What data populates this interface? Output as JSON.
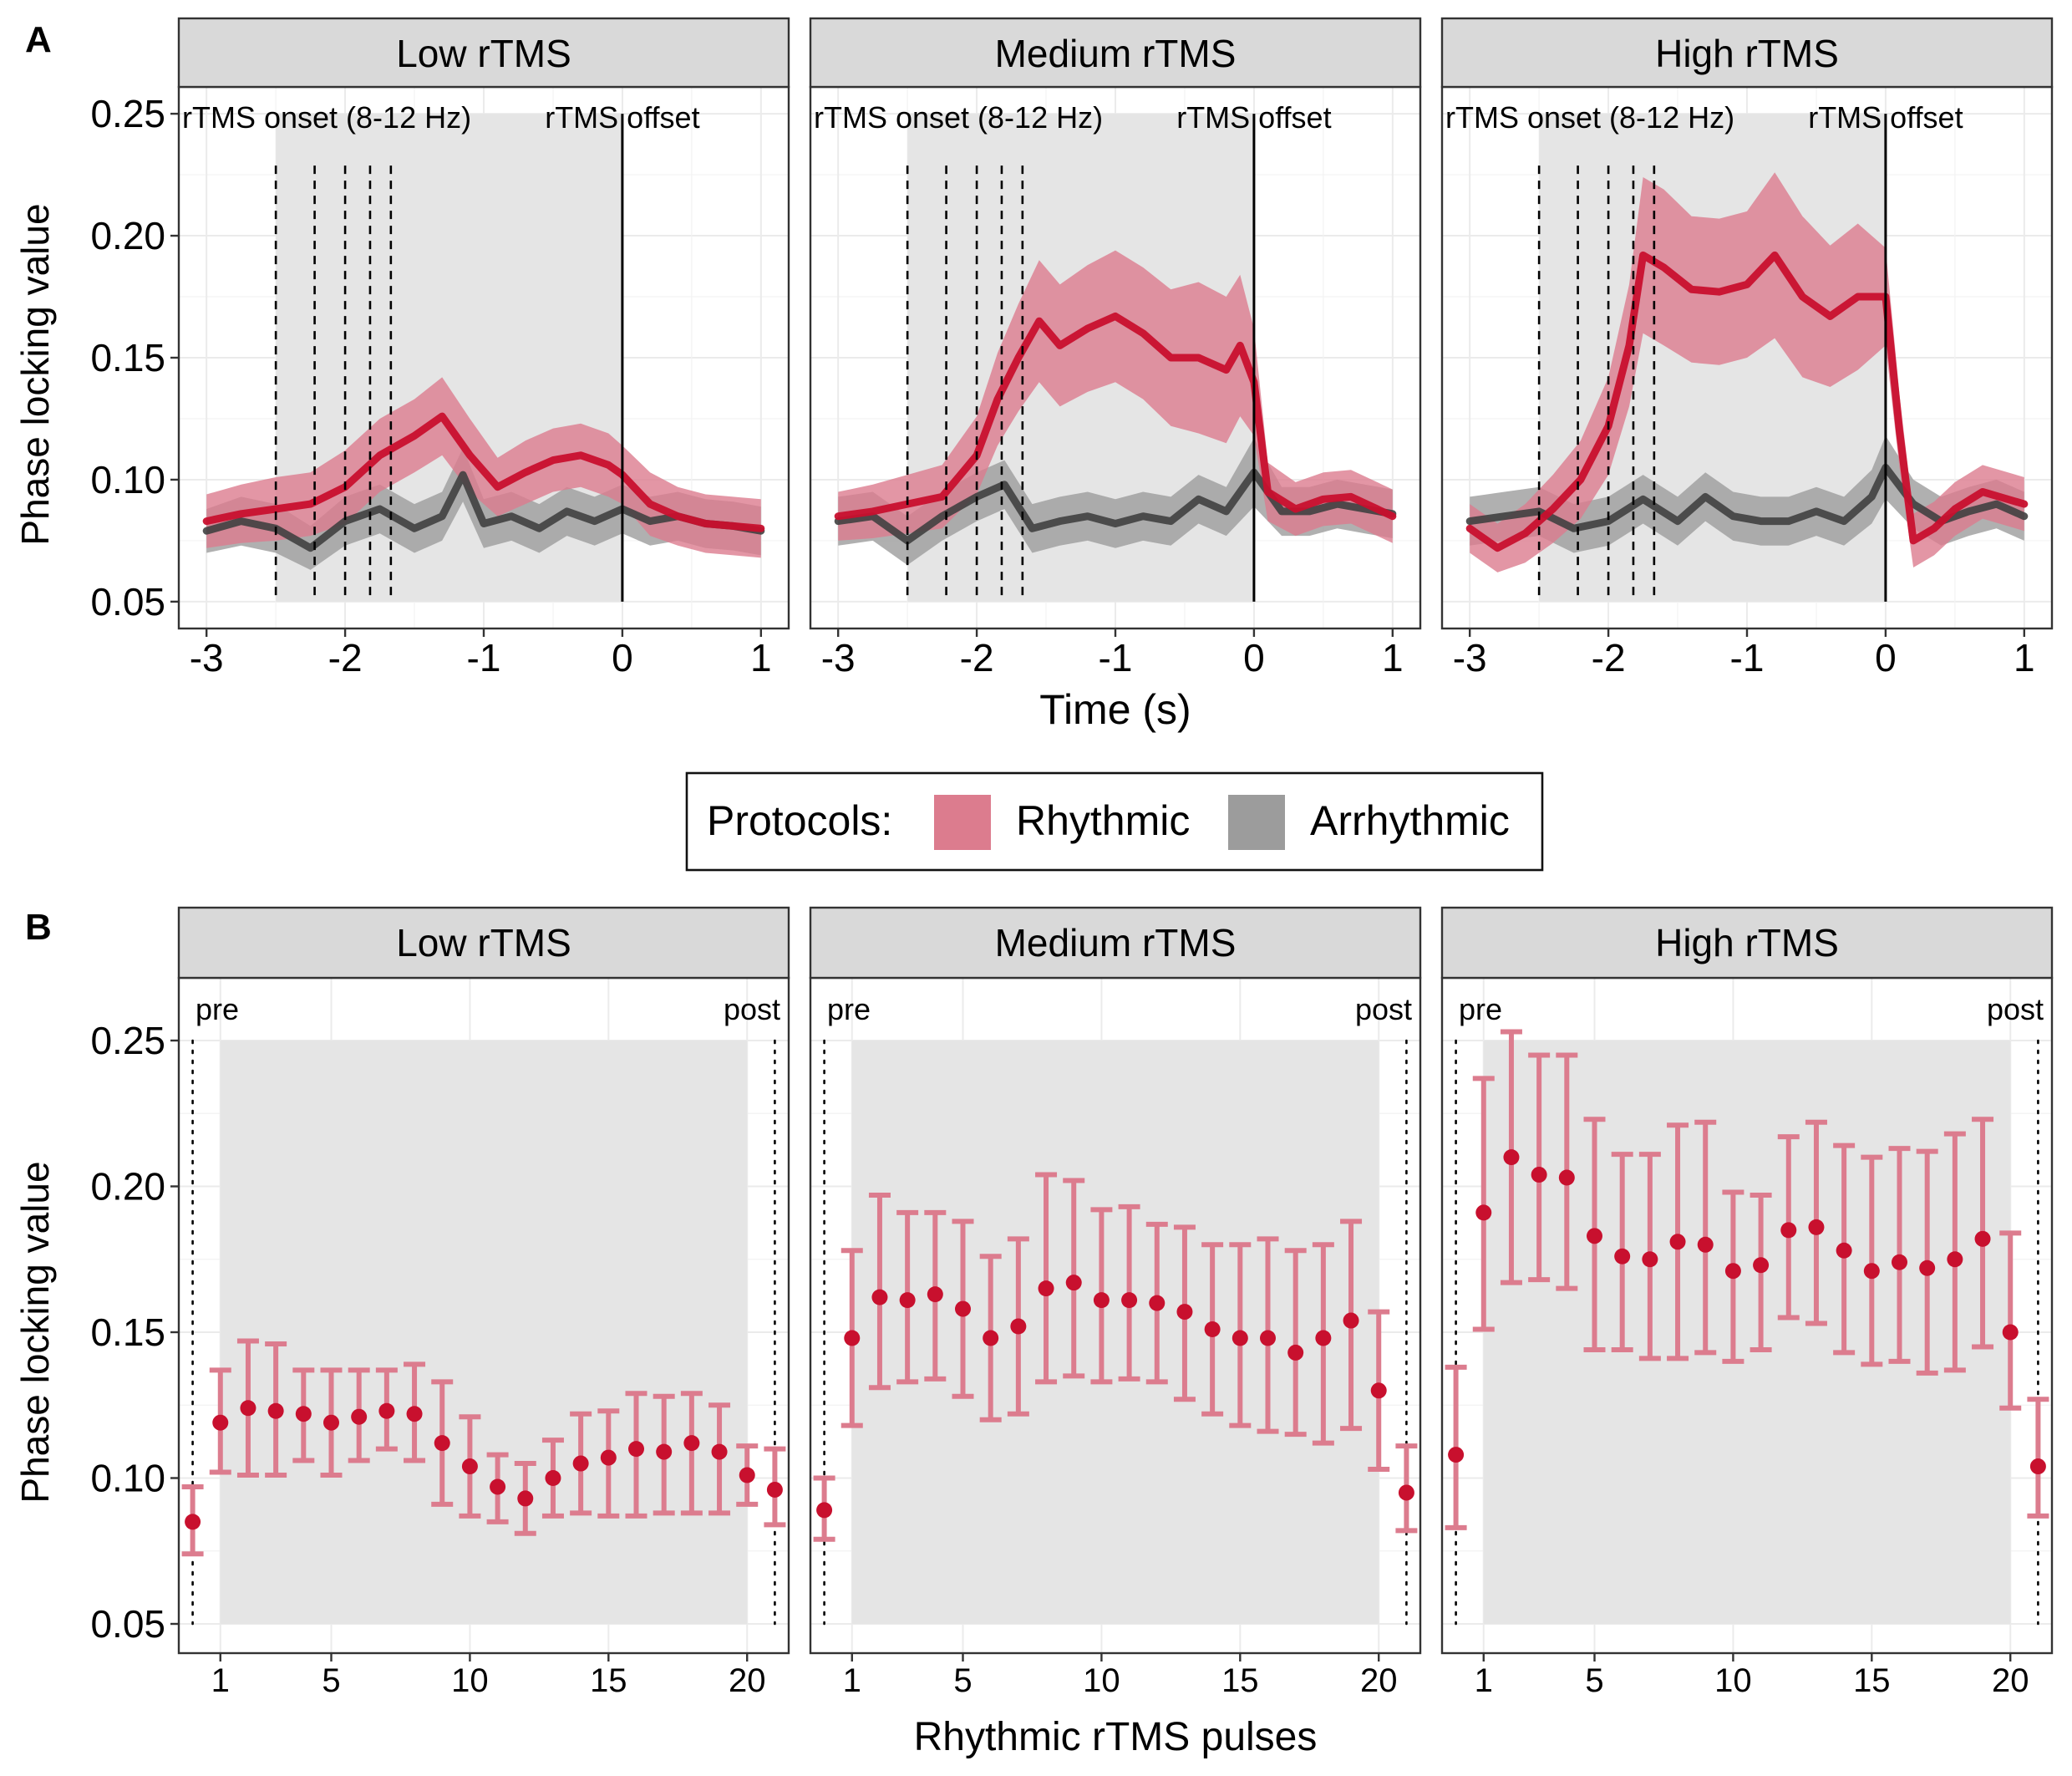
{
  "figure": {
    "panel_a_letter": "A",
    "panel_b_letter": "B",
    "colors": {
      "rhythmic": "#C8102E",
      "rhythmic_fill": "#DC7C8E",
      "arrhythmic": "#404040",
      "arrhythmic_fill": "#9C9C9C",
      "strip": "#D9D9D9",
      "shade": "#E5E5E5",
      "grid": "#EBEBEB"
    }
  },
  "legend": {
    "title": "Protocols:",
    "items": [
      {
        "label": "Rhythmic",
        "color": "#DC7C8E"
      },
      {
        "label": "Arrhythmic",
        "color": "#9C9C9C"
      }
    ]
  },
  "chart_data": [
    {
      "panel": "A",
      "type": "line",
      "ylabel": "Phase locking value",
      "xlabel": "Time (s)",
      "xlim": [
        -3,
        1
      ],
      "ylim": [
        0.05,
        0.25
      ],
      "xticks": [
        -3,
        -2,
        -1,
        0,
        1
      ],
      "xtick_labels": [
        "-3",
        "-2",
        "-1",
        "0",
        "1"
      ],
      "yticks": [
        0.05,
        0.1,
        0.15,
        0.2,
        0.25
      ],
      "ytick_labels": [
        "0.05",
        "0.10",
        "0.15",
        "0.20",
        "0.25"
      ],
      "annotations": {
        "onset": "rTMS onset (8-12 Hz)",
        "offset": "rTMS offset"
      },
      "shaded_x_range": [
        -2.5,
        0
      ],
      "onset_lines_x": [
        -2.5,
        -2.22,
        -2.0,
        -1.82,
        -1.67
      ],
      "offset_line_x": 0,
      "facets": [
        {
          "title": "Low rTMS",
          "series": [
            {
              "name": "Rhythmic",
              "x": [
                -3.0,
                -2.75,
                -2.5,
                -2.25,
                -2.0,
                -1.75,
                -1.5,
                -1.3,
                -1.1,
                -0.9,
                -0.7,
                -0.5,
                -0.3,
                -0.1,
                0.0,
                0.2,
                0.4,
                0.6,
                0.8,
                1.0
              ],
              "y": [
                0.083,
                0.086,
                0.088,
                0.09,
                0.097,
                0.11,
                0.118,
                0.126,
                0.11,
                0.097,
                0.103,
                0.108,
                0.11,
                0.106,
                0.102,
                0.09,
                0.085,
                0.082,
                0.081,
                0.08
              ],
              "lower": [
                0.072,
                0.074,
                0.075,
                0.077,
                0.082,
                0.095,
                0.103,
                0.11,
                0.095,
                0.085,
                0.09,
                0.095,
                0.097,
                0.093,
                0.09,
                0.077,
                0.073,
                0.07,
                0.069,
                0.068
              ],
              "upper": [
                0.094,
                0.098,
                0.101,
                0.103,
                0.112,
                0.125,
                0.133,
                0.142,
                0.125,
                0.109,
                0.116,
                0.121,
                0.123,
                0.119,
                0.114,
                0.103,
                0.097,
                0.094,
                0.093,
                0.092
              ]
            },
            {
              "name": "Arrhythmic",
              "x": [
                -3.0,
                -2.75,
                -2.5,
                -2.25,
                -2.0,
                -1.75,
                -1.5,
                -1.3,
                -1.15,
                -1.0,
                -0.8,
                -0.6,
                -0.4,
                -0.2,
                0.0,
                0.2,
                0.4,
                0.6,
                0.8,
                1.0
              ],
              "y": [
                0.079,
                0.083,
                0.08,
                0.072,
                0.083,
                0.088,
                0.08,
                0.085,
                0.102,
                0.082,
                0.085,
                0.08,
                0.087,
                0.083,
                0.088,
                0.083,
                0.085,
                0.082,
                0.081,
                0.079
              ],
              "lower": [
                0.07,
                0.073,
                0.07,
                0.063,
                0.073,
                0.078,
                0.07,
                0.075,
                0.091,
                0.072,
                0.075,
                0.07,
                0.077,
                0.073,
                0.078,
                0.073,
                0.075,
                0.072,
                0.071,
                0.069
              ],
              "upper": [
                0.088,
                0.093,
                0.09,
                0.081,
                0.093,
                0.098,
                0.09,
                0.095,
                0.113,
                0.092,
                0.095,
                0.09,
                0.097,
                0.093,
                0.098,
                0.093,
                0.095,
                0.092,
                0.091,
                0.089
              ]
            }
          ]
        },
        {
          "title": "Medium rTMS",
          "series": [
            {
              "name": "Rhythmic",
              "x": [
                -3.0,
                -2.75,
                -2.5,
                -2.25,
                -2.0,
                -1.85,
                -1.7,
                -1.55,
                -1.4,
                -1.2,
                -1.0,
                -0.8,
                -0.6,
                -0.4,
                -0.2,
                -0.1,
                0.0,
                0.1,
                0.3,
                0.5,
                0.7,
                1.0
              ],
              "y": [
                0.085,
                0.087,
                0.09,
                0.093,
                0.11,
                0.133,
                0.15,
                0.165,
                0.155,
                0.162,
                0.167,
                0.16,
                0.15,
                0.15,
                0.145,
                0.155,
                0.14,
                0.095,
                0.088,
                0.092,
                0.093,
                0.085
              ],
              "lower": [
                0.075,
                0.076,
                0.078,
                0.08,
                0.094,
                0.114,
                0.128,
                0.14,
                0.13,
                0.136,
                0.14,
                0.133,
                0.122,
                0.119,
                0.115,
                0.126,
                0.118,
                0.083,
                0.077,
                0.081,
                0.082,
                0.074
              ],
              "upper": [
                0.095,
                0.098,
                0.102,
                0.106,
                0.126,
                0.152,
                0.172,
                0.19,
                0.18,
                0.188,
                0.194,
                0.187,
                0.178,
                0.181,
                0.175,
                0.184,
                0.162,
                0.107,
                0.099,
                0.103,
                0.104,
                0.096
              ]
            },
            {
              "name": "Arrhythmic",
              "x": [
                -3.0,
                -2.75,
                -2.5,
                -2.25,
                -2.0,
                -1.8,
                -1.6,
                -1.4,
                -1.2,
                -1.0,
                -0.8,
                -0.6,
                -0.4,
                -0.2,
                0.0,
                0.2,
                0.4,
                0.6,
                0.8,
                1.0
              ],
              "y": [
                0.083,
                0.085,
                0.075,
                0.085,
                0.093,
                0.098,
                0.08,
                0.083,
                0.085,
                0.082,
                0.085,
                0.083,
                0.092,
                0.087,
                0.103,
                0.087,
                0.087,
                0.09,
                0.088,
                0.086
              ],
              "lower": [
                0.073,
                0.075,
                0.065,
                0.075,
                0.083,
                0.088,
                0.07,
                0.073,
                0.075,
                0.072,
                0.075,
                0.073,
                0.082,
                0.077,
                0.089,
                0.077,
                0.077,
                0.08,
                0.078,
                0.076
              ],
              "upper": [
                0.093,
                0.095,
                0.085,
                0.095,
                0.103,
                0.108,
                0.09,
                0.093,
                0.095,
                0.092,
                0.095,
                0.093,
                0.102,
                0.097,
                0.117,
                0.097,
                0.097,
                0.1,
                0.098,
                0.096
              ]
            }
          ]
        },
        {
          "title": "High rTMS",
          "series": [
            {
              "name": "Rhythmic",
              "x": [
                -3.0,
                -2.8,
                -2.6,
                -2.4,
                -2.2,
                -2.0,
                -1.85,
                -1.75,
                -1.6,
                -1.4,
                -1.2,
                -1.0,
                -0.8,
                -0.6,
                -0.4,
                -0.2,
                0.0,
                0.1,
                0.2,
                0.35,
                0.5,
                0.7,
                1.0
              ],
              "y": [
                0.08,
                0.072,
                0.078,
                0.088,
                0.1,
                0.122,
                0.155,
                0.192,
                0.187,
                0.178,
                0.177,
                0.18,
                0.192,
                0.175,
                0.167,
                0.175,
                0.175,
                0.12,
                0.075,
                0.08,
                0.088,
                0.095,
                0.09
              ],
              "lower": [
                0.07,
                0.062,
                0.066,
                0.074,
                0.084,
                0.102,
                0.13,
                0.16,
                0.155,
                0.148,
                0.147,
                0.15,
                0.158,
                0.142,
                0.138,
                0.145,
                0.155,
                0.105,
                0.064,
                0.069,
                0.077,
                0.084,
                0.079
              ],
              "upper": [
                0.09,
                0.082,
                0.09,
                0.102,
                0.116,
                0.142,
                0.18,
                0.224,
                0.219,
                0.208,
                0.207,
                0.21,
                0.226,
                0.208,
                0.196,
                0.205,
                0.195,
                0.135,
                0.086,
                0.091,
                0.099,
                0.106,
                0.101
              ]
            },
            {
              "name": "Arrhythmic",
              "x": [
                -3.0,
                -2.75,
                -2.5,
                -2.25,
                -2.0,
                -1.75,
                -1.5,
                -1.3,
                -1.1,
                -0.9,
                -0.7,
                -0.5,
                -0.3,
                -0.1,
                0.0,
                0.2,
                0.4,
                0.6,
                0.8,
                1.0
              ],
              "y": [
                0.083,
                0.085,
                0.087,
                0.08,
                0.083,
                0.092,
                0.083,
                0.093,
                0.085,
                0.083,
                0.083,
                0.087,
                0.083,
                0.093,
                0.105,
                0.09,
                0.083,
                0.087,
                0.09,
                0.085
              ],
              "lower": [
                0.073,
                0.075,
                0.077,
                0.07,
                0.073,
                0.082,
                0.073,
                0.083,
                0.075,
                0.073,
                0.073,
                0.077,
                0.073,
                0.082,
                0.092,
                0.08,
                0.073,
                0.077,
                0.08,
                0.075
              ],
              "upper": [
                0.093,
                0.095,
                0.097,
                0.09,
                0.093,
                0.102,
                0.093,
                0.103,
                0.095,
                0.093,
                0.093,
                0.097,
                0.093,
                0.104,
                0.118,
                0.1,
                0.093,
                0.097,
                0.1,
                0.095
              ]
            }
          ]
        }
      ]
    },
    {
      "panel": "B",
      "type": "scatter",
      "ylabel": "Phase locking value",
      "xlabel": "Rhythmic rTMS pulses",
      "xlim": [
        -0.5,
        21.5
      ],
      "ylim": [
        0.05,
        0.25
      ],
      "xticks": [
        1,
        5,
        10,
        15,
        20
      ],
      "xtick_labels": [
        "1",
        "5",
        "10",
        "15",
        "20"
      ],
      "yticks": [
        0.05,
        0.1,
        0.15,
        0.2,
        0.25
      ],
      "ytick_labels": [
        "0.05",
        "0.10",
        "0.15",
        "0.20",
        "0.25"
      ],
      "annotations": {
        "pre": "pre",
        "post": "post"
      },
      "shaded_x_range": [
        1,
        20
      ],
      "pre_x": 0,
      "post_x": 21,
      "x": [
        0,
        1,
        2,
        3,
        4,
        5,
        6,
        7,
        8,
        9,
        10,
        11,
        12,
        13,
        14,
        15,
        16,
        17,
        18,
        19,
        20,
        21
      ],
      "facets": [
        {
          "title": "Low rTMS",
          "y": [
            0.085,
            0.119,
            0.124,
            0.123,
            0.122,
            0.119,
            0.121,
            0.123,
            0.122,
            0.112,
            0.104,
            0.097,
            0.093,
            0.1,
            0.105,
            0.107,
            0.11,
            0.109,
            0.112,
            0.109,
            0.101,
            0.096
          ],
          "lower": [
            0.074,
            0.102,
            0.101,
            0.101,
            0.106,
            0.101,
            0.106,
            0.11,
            0.106,
            0.091,
            0.087,
            0.085,
            0.081,
            0.087,
            0.088,
            0.087,
            0.087,
            0.088,
            0.088,
            0.088,
            0.091,
            0.084
          ],
          "upper": [
            0.097,
            0.137,
            0.147,
            0.146,
            0.137,
            0.137,
            0.137,
            0.137,
            0.139,
            0.133,
            0.121,
            0.108,
            0.105,
            0.113,
            0.122,
            0.123,
            0.129,
            0.128,
            0.129,
            0.125,
            0.111,
            0.11
          ]
        },
        {
          "title": "Medium rTMS",
          "y": [
            0.089,
            0.148,
            0.162,
            0.161,
            0.163,
            0.158,
            0.148,
            0.152,
            0.165,
            0.167,
            0.161,
            0.161,
            0.16,
            0.157,
            0.151,
            0.148,
            0.148,
            0.143,
            0.148,
            0.154,
            0.13,
            0.095
          ],
          "lower": [
            0.079,
            0.118,
            0.131,
            0.133,
            0.134,
            0.128,
            0.12,
            0.122,
            0.133,
            0.135,
            0.133,
            0.134,
            0.133,
            0.127,
            0.122,
            0.118,
            0.116,
            0.115,
            0.112,
            0.117,
            0.103,
            0.082
          ],
          "upper": [
            0.1,
            0.178,
            0.197,
            0.191,
            0.191,
            0.188,
            0.176,
            0.182,
            0.204,
            0.202,
            0.192,
            0.193,
            0.187,
            0.186,
            0.18,
            0.18,
            0.182,
            0.178,
            0.18,
            0.188,
            0.157,
            0.111
          ]
        },
        {
          "title": "High rTMS",
          "y": [
            0.108,
            0.191,
            0.21,
            0.204,
            0.203,
            0.183,
            0.176,
            0.175,
            0.181,
            0.18,
            0.171,
            0.173,
            0.185,
            0.186,
            0.178,
            0.171,
            0.174,
            0.172,
            0.175,
            0.182,
            0.15,
            0.104
          ],
          "lower": [
            0.083,
            0.151,
            0.167,
            0.168,
            0.165,
            0.144,
            0.144,
            0.141,
            0.141,
            0.143,
            0.14,
            0.144,
            0.155,
            0.153,
            0.143,
            0.139,
            0.14,
            0.136,
            0.137,
            0.145,
            0.124,
            0.087
          ],
          "upper": [
            0.138,
            0.237,
            0.253,
            0.245,
            0.245,
            0.223,
            0.211,
            0.211,
            0.221,
            0.222,
            0.198,
            0.197,
            0.217,
            0.222,
            0.214,
            0.21,
            0.213,
            0.212,
            0.218,
            0.223,
            0.184,
            0.127
          ]
        }
      ]
    }
  ]
}
